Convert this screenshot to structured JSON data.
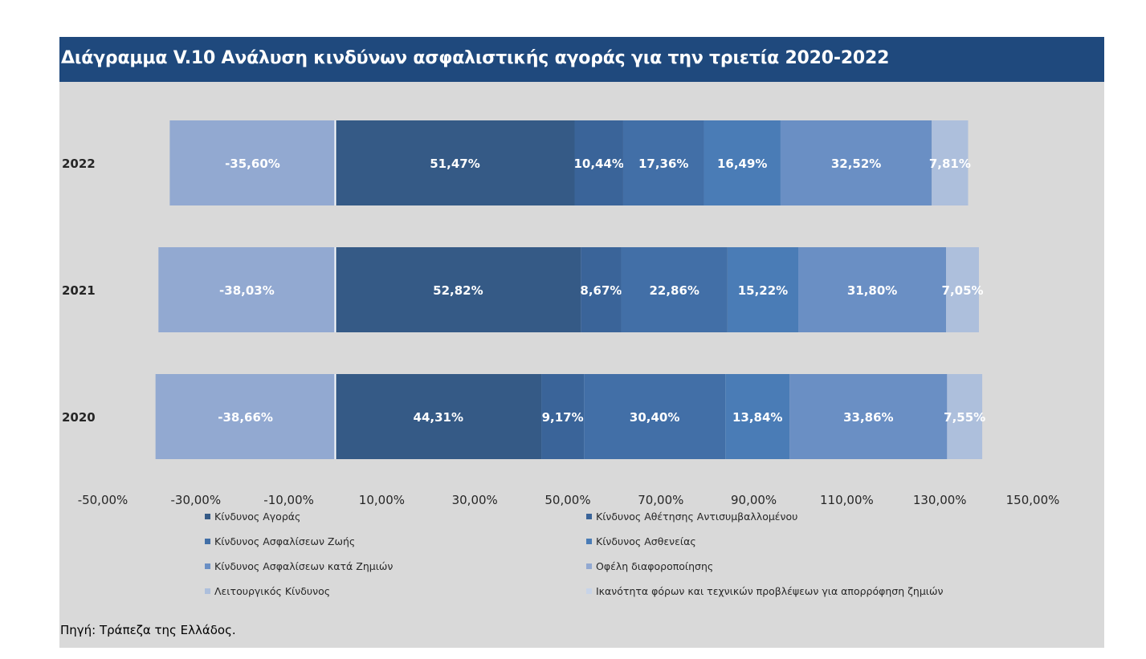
{
  "title": "Διάγραμμα V.10 Ανάλυση κινδύνων ασφαλιστικής αγοράς για την τριετία 2020-2022",
  "source": "Πηγή: Τράπεζα της Ελλάδος.",
  "chart_data": {
    "type": "bar",
    "orientation": "horizontal",
    "stacked": true,
    "categories": [
      "2022",
      "2021",
      "2020"
    ],
    "xlim": [
      -50,
      150
    ],
    "x_ticks": [
      "-50,00%",
      "-30,00%",
      "-10,00%",
      "10,00%",
      "30,00%",
      "50,00%",
      "70,00%",
      "90,00%",
      "110,00%",
      "130,00%",
      "150,00%"
    ],
    "x_tick_values": [
      -50,
      -30,
      -10,
      10,
      30,
      50,
      70,
      90,
      110,
      130,
      150
    ],
    "grid": false,
    "legend_position": "bottom",
    "series": [
      {
        "name": "Κίνδυνος Αγοράς",
        "color": "#355a86",
        "values": [
          51.47,
          52.82,
          44.31
        ],
        "labels": [
          "51,47%",
          "52,82%",
          "44,31%"
        ]
      },
      {
        "name": "Κίνδυνος Αθέτησης Αντισυμβαλλομένου",
        "color": "#3a6499",
        "values": [
          10.44,
          8.67,
          9.17
        ],
        "labels": [
          "10,44%",
          "8,67%",
          "9,17%"
        ]
      },
      {
        "name": "Κίνδυνος Ασφαλίσεων Ζωής",
        "color": "#426fa7",
        "values": [
          17.36,
          22.86,
          30.4
        ],
        "labels": [
          "17,36%",
          "22,86%",
          "30,40%"
        ]
      },
      {
        "name": "Κίνδυνος Ασθενείας",
        "color": "#4a7cb6",
        "values": [
          16.49,
          15.22,
          13.84
        ],
        "labels": [
          "16,49%",
          "15,22%",
          "13,84%"
        ]
      },
      {
        "name": "Κίνδυνος Ασφαλίσεων κατά Ζημιών",
        "color": "#6a8fc4",
        "values": [
          32.52,
          31.8,
          33.86
        ],
        "labels": [
          "32,52%",
          "31,80%",
          "33,86%"
        ]
      },
      {
        "name": "Οφέλη διαφοροποίησης",
        "color": "#92a9d1",
        "values": [
          -35.6,
          -38.03,
          -38.66
        ],
        "labels": [
          "-35,60%",
          "-38,03%",
          "-38,66%"
        ]
      },
      {
        "name": "Λειτουργικός Κίνδυνος",
        "color": "#adbfdc",
        "values": [
          7.81,
          7.05,
          7.55
        ],
        "labels": [
          "7,81%",
          "7,05%",
          "7,55%"
        ]
      },
      {
        "name": "Ικανότητα φόρων και τεχνικών προβλέψεων για απορρόφηση ζημιών",
        "color": "#c8d4e8",
        "values": [
          0,
          0,
          0
        ],
        "labels": [
          "",
          "",
          ""
        ]
      }
    ]
  }
}
